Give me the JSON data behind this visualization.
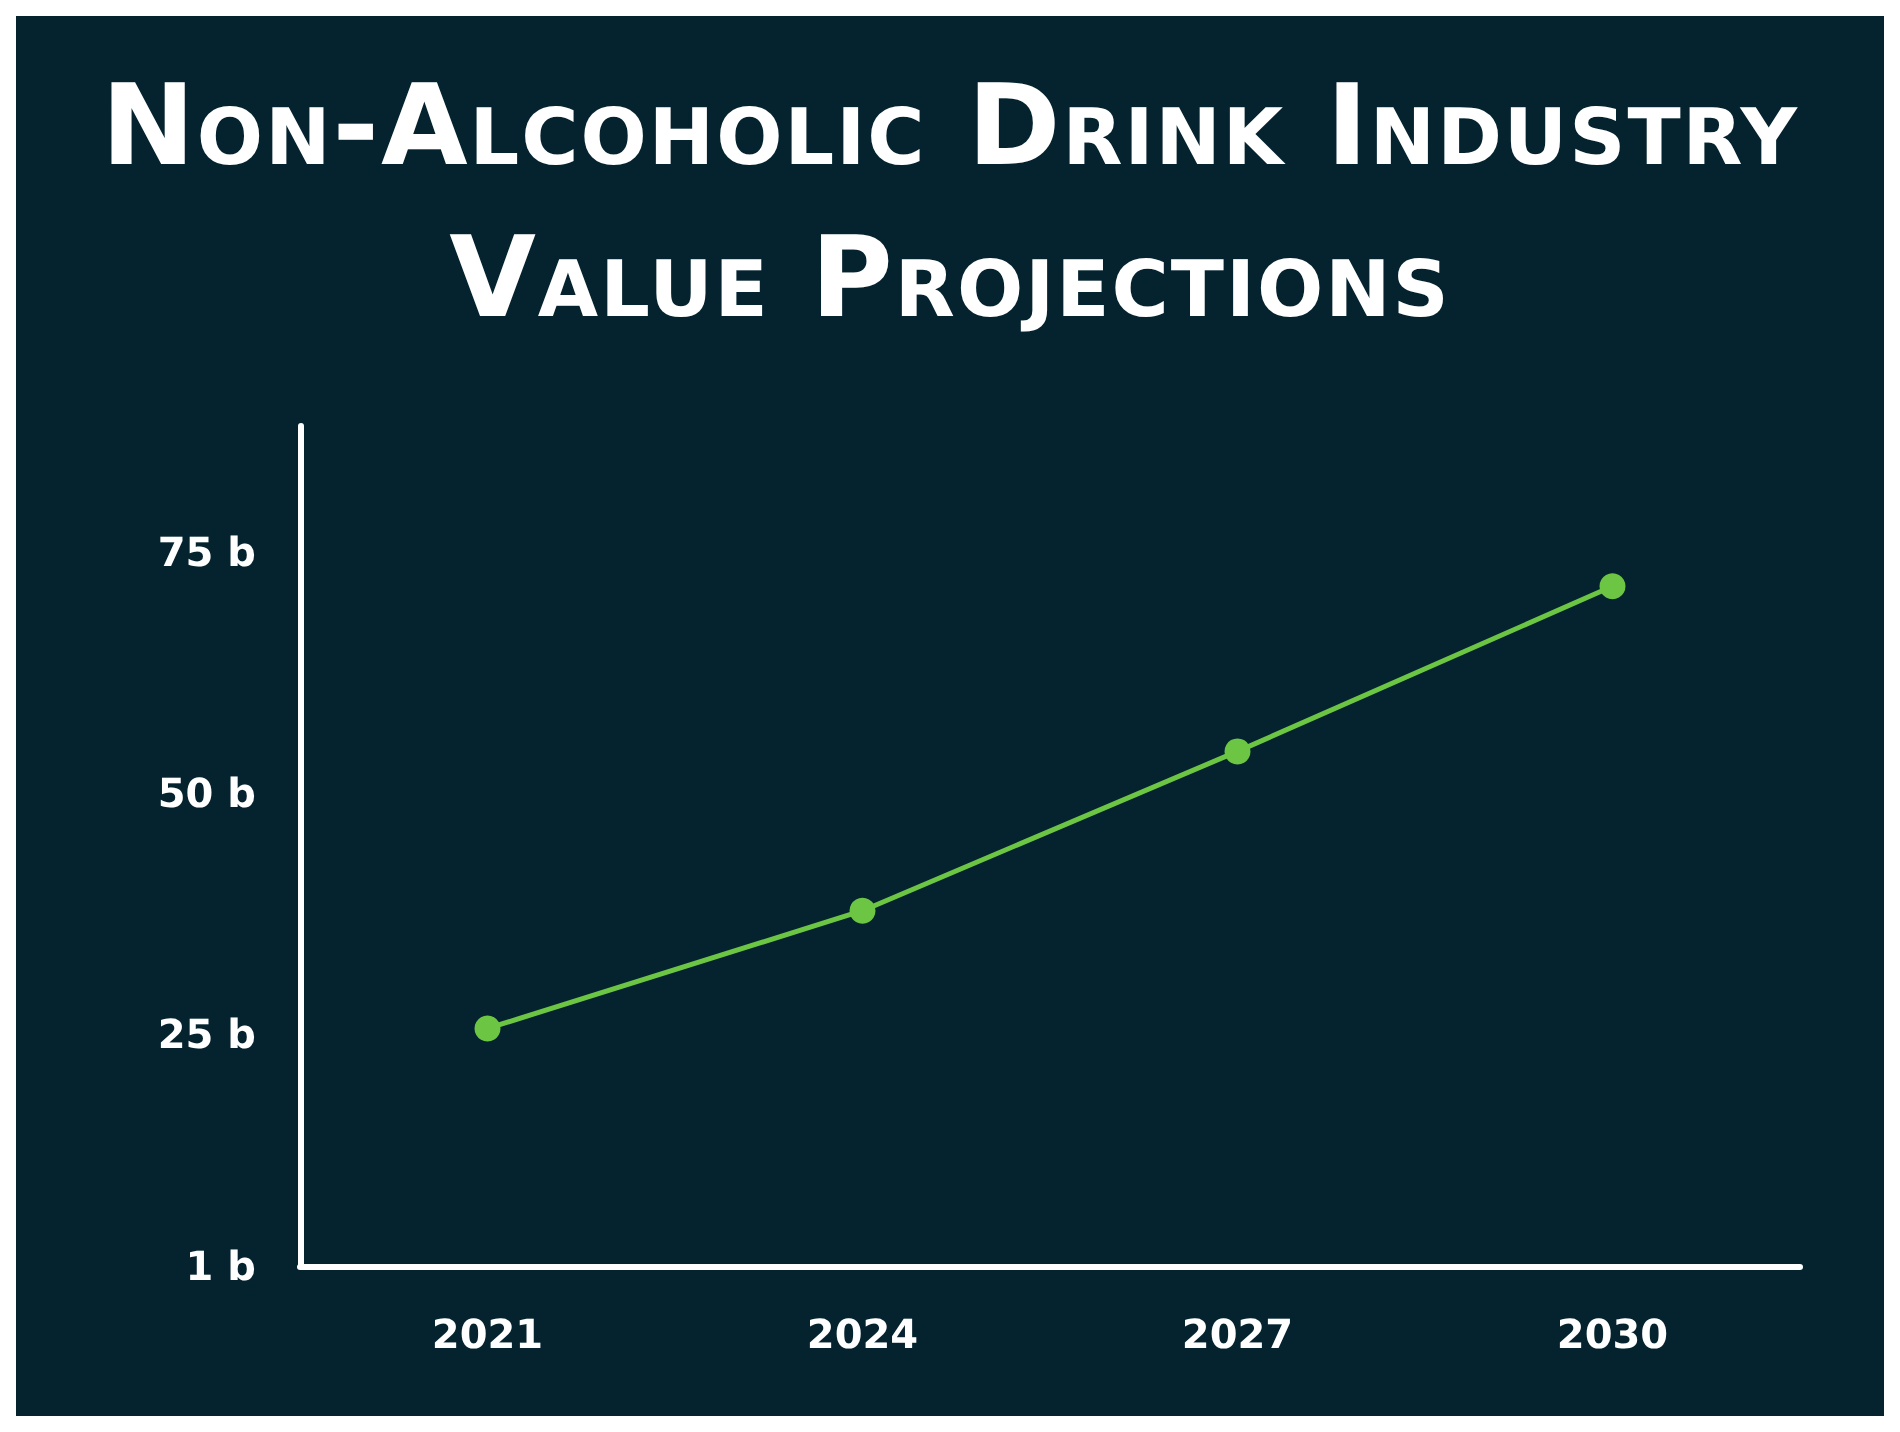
{
  "chart_data": {
    "type": "line",
    "title": "Non-Alcoholic Drink Industry Value Projections",
    "categories": [
      "2021",
      "2024",
      "2027",
      "2030"
    ],
    "series": [
      {
        "color": "#6cc644",
        "values": [
          25.6,
          37.8,
          54.3,
          71.4
        ]
      }
    ],
    "ylim": [
      1,
      88
    ],
    "yticks": [
      {
        "value": 1,
        "label": "1 b"
      },
      {
        "value": 25,
        "label": "25 b"
      },
      {
        "value": 50,
        "label": "50 b"
      },
      {
        "value": 75,
        "label": "75 b"
      }
    ],
    "marker": "circle",
    "line_style": "solid",
    "grid": false
  }
}
